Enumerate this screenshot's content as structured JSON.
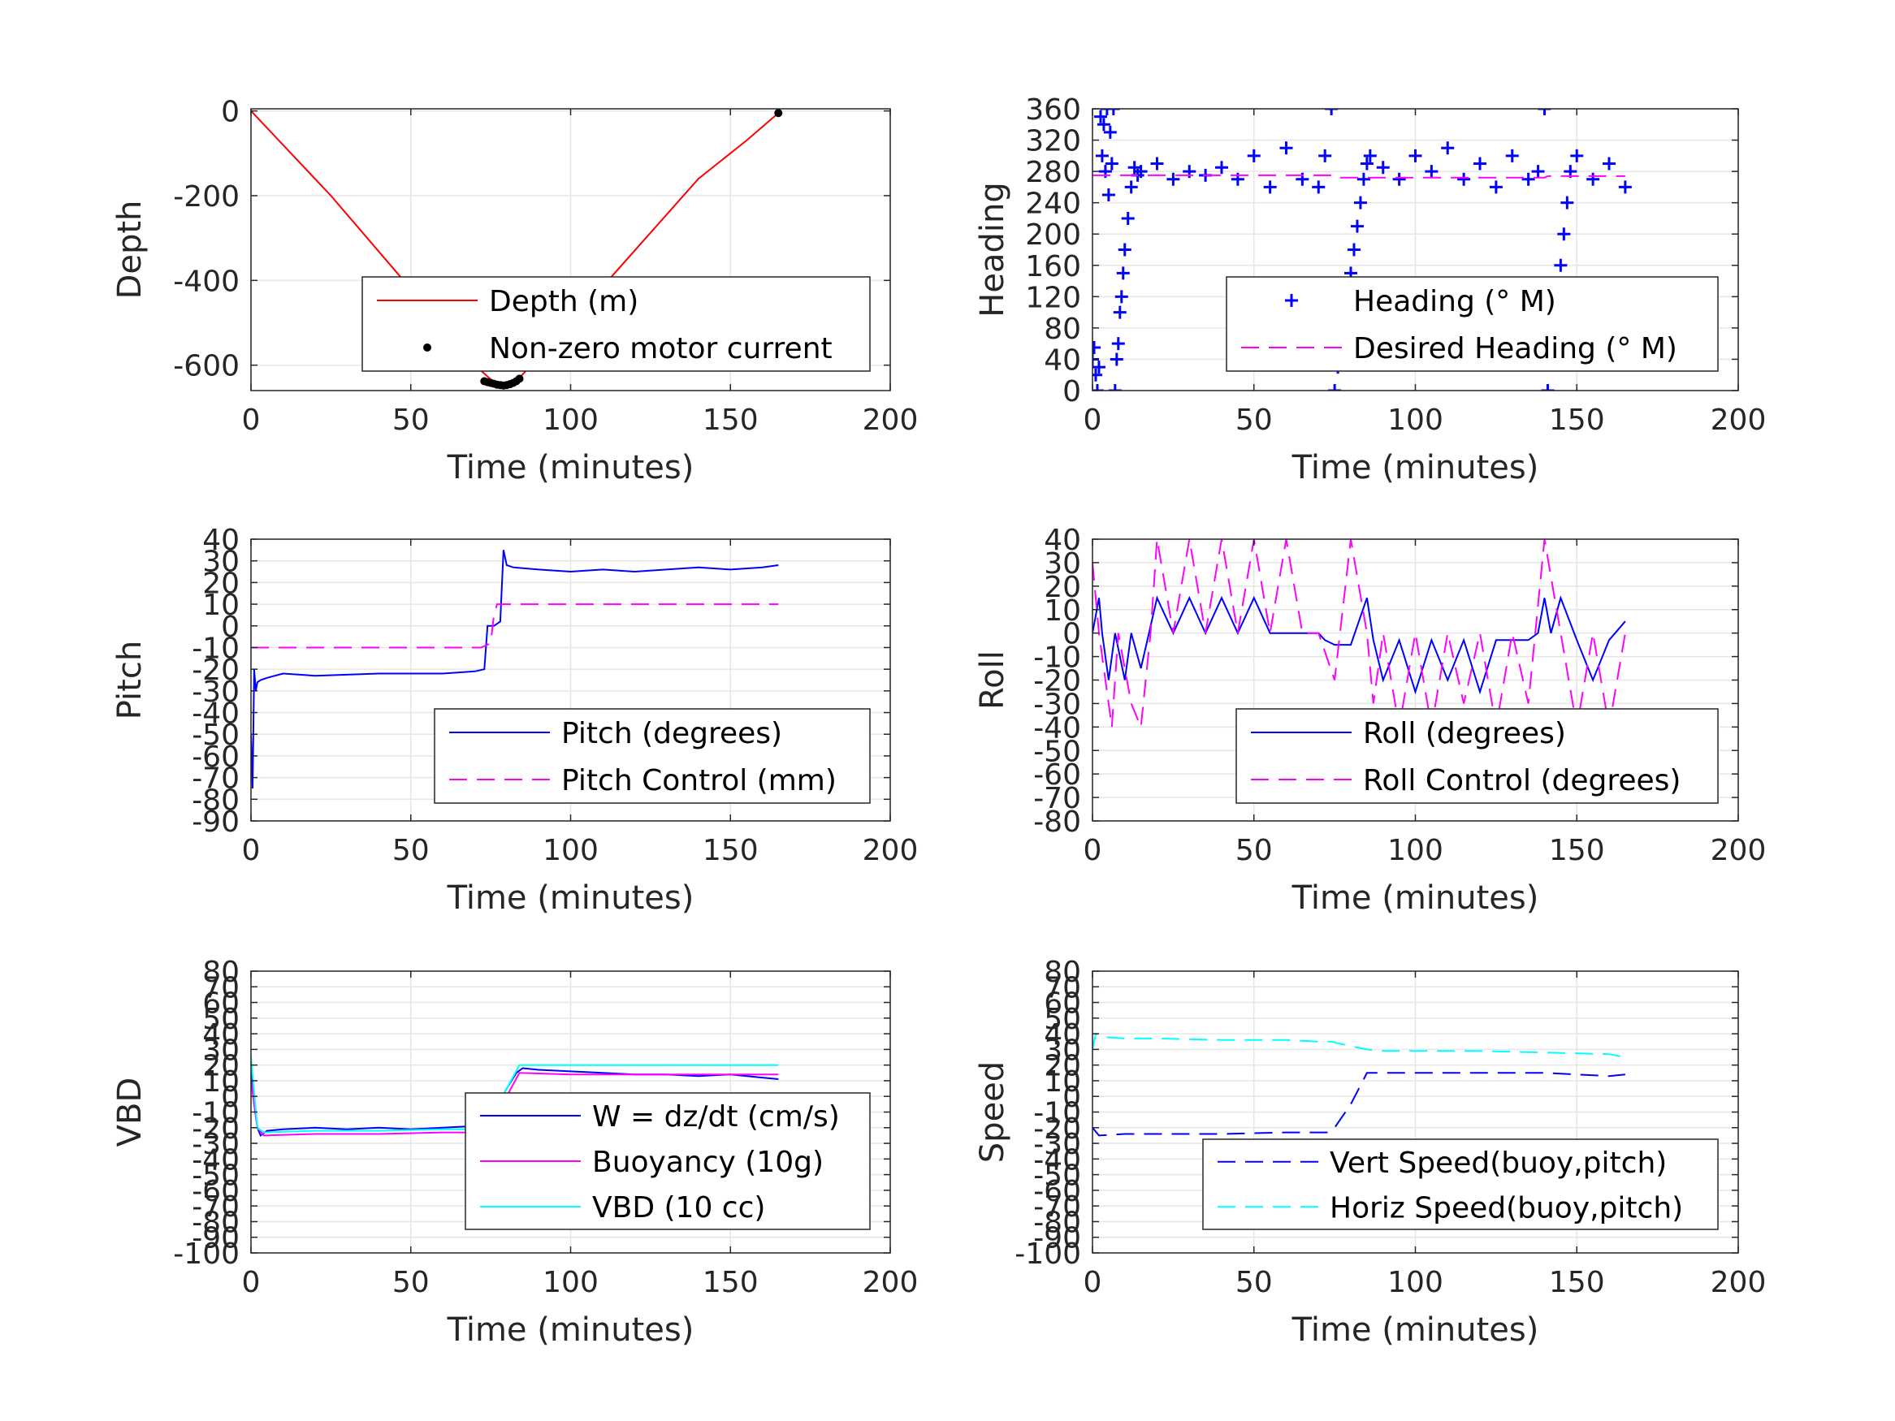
{
  "chart_data": [
    {
      "type": "line",
      "xlabel": "Time (minutes)",
      "ylabel": "Depth",
      "xlim": [
        0,
        200
      ],
      "ylim": [
        -660,
        5
      ],
      "xticks": [
        0,
        50,
        100,
        150,
        200
      ],
      "yticks": [
        0,
        -200,
        -400,
        -600
      ],
      "grid": true,
      "legend_position": "bottom-right",
      "series": [
        {
          "name": "Depth (m)",
          "style": "solid",
          "marker": "none",
          "color": "#ff0000",
          "x": [
            0,
            25,
            50,
            70,
            76,
            80,
            84,
            100,
            120,
            140,
            155,
            165
          ],
          "y": [
            0,
            -200,
            -420,
            -600,
            -640,
            -645,
            -630,
            -500,
            -330,
            -160,
            -70,
            -5
          ]
        },
        {
          "name": "Non-zero motor current",
          "style": "none",
          "marker": "dot",
          "color": "#000000",
          "x": [
            73,
            74,
            75,
            76,
            77,
            78,
            79,
            80,
            81,
            82,
            83,
            84,
            165
          ],
          "y": [
            -638,
            -640,
            -642,
            -644,
            -646,
            -647,
            -648,
            -647,
            -645,
            -642,
            -638,
            -632,
            -5
          ]
        }
      ]
    },
    {
      "type": "scatter",
      "xlabel": "Time (minutes)",
      "ylabel": "Heading",
      "xlim": [
        0,
        200
      ],
      "ylim": [
        0,
        360
      ],
      "xticks": [
        0,
        50,
        100,
        150,
        200
      ],
      "yticks": [
        0,
        40,
        80,
        120,
        160,
        200,
        240,
        280,
        320,
        360
      ],
      "grid": true,
      "legend_position": "bottom-right",
      "series": [
        {
          "name": "Heading (° M)",
          "style": "none",
          "marker": "plus",
          "color": "#0000ff",
          "x": [
            0,
            0.5,
            1,
            1.5,
            2,
            2.5,
            3,
            3.5,
            4,
            4.5,
            5,
            5.5,
            6,
            6.5,
            7,
            7.5,
            8,
            8.5,
            9,
            9.5,
            10,
            11,
            12,
            13,
            14,
            15,
            20,
            25,
            30,
            35,
            40,
            45,
            50,
            55,
            60,
            65,
            70,
            72,
            74,
            75,
            76,
            77,
            78,
            79,
            80,
            81,
            82,
            83,
            84,
            85,
            86,
            90,
            95,
            100,
            105,
            110,
            115,
            120,
            125,
            130,
            135,
            138,
            140,
            141,
            142,
            143,
            144,
            145,
            146,
            147,
            148,
            150,
            155,
            160,
            165
          ],
          "y": [
            40,
            55,
            20,
            0,
            30,
            350,
            300,
            340,
            280,
            360,
            250,
            330,
            290,
            360,
            0,
            40,
            60,
            100,
            120,
            150,
            180,
            220,
            260,
            285,
            275,
            280,
            290,
            270,
            280,
            275,
            285,
            270,
            300,
            260,
            310,
            270,
            260,
            300,
            360,
            0,
            30,
            70,
            100,
            130,
            150,
            180,
            210,
            240,
            270,
            290,
            300,
            285,
            270,
            300,
            280,
            310,
            270,
            290,
            260,
            300,
            270,
            280,
            360,
            0,
            40,
            80,
            120,
            160,
            200,
            240,
            280,
            300,
            270,
            290,
            260
          ]
        },
        {
          "name": "Desired Heading (° M)",
          "style": "dash",
          "marker": "none",
          "color": "#ff00ff",
          "x": [
            0,
            75,
            76,
            140,
            141,
            165
          ],
          "y": [
            275,
            275,
            272,
            272,
            274,
            274
          ]
        }
      ]
    },
    {
      "type": "line",
      "xlabel": "Time (minutes)",
      "ylabel": "Pitch",
      "xlim": [
        0,
        200
      ],
      "ylim": [
        -90,
        40
      ],
      "xticks": [
        0,
        50,
        100,
        150,
        200
      ],
      "yticks": [
        40,
        30,
        20,
        10,
        0,
        -10,
        -20,
        -30,
        -40,
        -50,
        -60,
        -70,
        -80,
        -90
      ],
      "grid": true,
      "legend_position": "bottom-right",
      "series": [
        {
          "name": "Pitch (degrees)",
          "style": "solid",
          "marker": "none",
          "color": "#0000ff",
          "x": [
            0,
            0.5,
            1,
            1.5,
            2,
            3,
            5,
            10,
            20,
            40,
            60,
            70,
            73,
            74,
            76,
            78,
            79,
            80,
            82,
            90,
            100,
            110,
            120,
            130,
            140,
            150,
            160,
            165
          ],
          "y": [
            -50,
            -75,
            -20,
            -30,
            -26,
            -25,
            -24,
            -22,
            -23,
            -22,
            -22,
            -21,
            -20,
            0,
            0,
            2,
            35,
            28,
            27,
            26,
            25,
            26,
            25,
            26,
            27,
            26,
            27,
            28
          ]
        },
        {
          "name": "Pitch Control (mm)",
          "style": "dash",
          "marker": "none",
          "color": "#ff00ff",
          "x": [
            0,
            72,
            75,
            76,
            77,
            165
          ],
          "y": [
            -10,
            -10,
            -8,
            5,
            10,
            10
          ]
        }
      ]
    },
    {
      "type": "line",
      "xlabel": "Time (minutes)",
      "ylabel": "Roll",
      "xlim": [
        0,
        200
      ],
      "ylim": [
        -80,
        40
      ],
      "xticks": [
        0,
        50,
        100,
        150,
        200
      ],
      "yticks": [
        40,
        30,
        20,
        10,
        0,
        -10,
        -20,
        -30,
        -40,
        -50,
        -60,
        -70,
        -80
      ],
      "grid": true,
      "legend_position": "bottom-right",
      "series": [
        {
          "name": "Roll (degrees)",
          "style": "solid",
          "marker": "none",
          "color": "#0000ff",
          "x": [
            0,
            2,
            3,
            5,
            7,
            10,
            12,
            15,
            20,
            25,
            30,
            35,
            40,
            45,
            50,
            55,
            60,
            65,
            70,
            72,
            75,
            80,
            85,
            87,
            90,
            95,
            100,
            105,
            110,
            115,
            120,
            125,
            130,
            135,
            138,
            140,
            142,
            145,
            150,
            155,
            160,
            165
          ],
          "y": [
            0,
            15,
            0,
            -20,
            0,
            -20,
            0,
            -15,
            15,
            0,
            15,
            0,
            15,
            0,
            15,
            0,
            0,
            0,
            0,
            -3,
            -5,
            -5,
            15,
            -3,
            -20,
            -3,
            -25,
            -3,
            -20,
            -3,
            -25,
            -3,
            -3,
            -3,
            0,
            15,
            0,
            15,
            -3,
            -20,
            -3,
            5
          ]
        },
        {
          "name": "Roll Control (degrees)",
          "style": "dash",
          "marker": "none",
          "color": "#ff00ff",
          "x": [
            0,
            2,
            4,
            6,
            8,
            12,
            15,
            18,
            20,
            25,
            30,
            35,
            40,
            45,
            50,
            55,
            60,
            65,
            70,
            75,
            80,
            85,
            87,
            90,
            95,
            100,
            105,
            110,
            115,
            120,
            125,
            130,
            135,
            140,
            145,
            150,
            155,
            160,
            165
          ],
          "y": [
            30,
            0,
            -20,
            -40,
            0,
            -30,
            -40,
            0,
            40,
            0,
            40,
            0,
            40,
            0,
            40,
            0,
            40,
            0,
            0,
            -20,
            40,
            0,
            -30,
            0,
            -40,
            0,
            -40,
            0,
            -30,
            0,
            -40,
            0,
            -30,
            40,
            0,
            -40,
            0,
            -40,
            0
          ]
        }
      ]
    },
    {
      "type": "line",
      "xlabel": "Time (minutes)",
      "ylabel": "VBD",
      "xlim": [
        0,
        200
      ],
      "ylim": [
        -100,
        80
      ],
      "xticks": [
        0,
        50,
        100,
        150,
        200
      ],
      "yticks": [
        80,
        70,
        60,
        50,
        40,
        30,
        20,
        10,
        0,
        -10,
        -20,
        -30,
        -40,
        -50,
        -60,
        -70,
        -80,
        -90,
        -100
      ],
      "ytick_labels": [
        "80",
        "70",
        "60",
        "50",
        "40",
        "30",
        "20",
        "10",
        "0",
        "-10",
        "-20",
        "-30",
        "-40",
        "-50",
        "-60",
        "-70",
        "-80",
        "-90",
        "-100"
      ],
      "grid": true,
      "legend_position": "bottom-right",
      "series": [
        {
          "name": "W = dz/dt (cm/s)",
          "style": "solid",
          "marker": "none",
          "color": "#0000ff",
          "x": [
            0,
            1,
            2,
            3,
            5,
            10,
            20,
            30,
            40,
            50,
            60,
            70,
            73,
            76,
            80,
            83,
            85,
            90,
            100,
            110,
            120,
            130,
            140,
            150,
            160,
            165
          ],
          "y": [
            20,
            -5,
            -20,
            -25,
            -22,
            -21,
            -20,
            -21,
            -20,
            -21,
            -20,
            -19,
            -18,
            -10,
            5,
            15,
            18,
            17,
            16,
            15,
            14,
            14,
            13,
            14,
            12,
            11
          ]
        },
        {
          "name": "Buoyancy (10g)",
          "style": "solid",
          "marker": "none",
          "color": "#ff00ff",
          "x": [
            0,
            2,
            4,
            20,
            40,
            60,
            72,
            74,
            80,
            84,
            100,
            120,
            140,
            165
          ],
          "y": [
            10,
            -20,
            -25,
            -24,
            -24,
            -23,
            -23,
            -20,
            0,
            15,
            14,
            14,
            14,
            14
          ]
        },
        {
          "name": "VBD (10 cc)",
          "style": "solid",
          "marker": "none",
          "color": "#00ffff",
          "x": [
            0,
            2,
            4,
            20,
            40,
            60,
            72,
            74,
            80,
            84,
            100,
            120,
            140,
            165
          ],
          "y": [
            25,
            -20,
            -23,
            -22,
            -22,
            -21,
            -21,
            -18,
            5,
            20,
            20,
            20,
            20,
            20
          ]
        }
      ]
    },
    {
      "type": "line",
      "xlabel": "Time (minutes)",
      "ylabel": "Speed",
      "xlim": [
        0,
        200
      ],
      "ylim": [
        -100,
        80
      ],
      "xticks": [
        0,
        50,
        100,
        150,
        200
      ],
      "yticks": [
        80,
        70,
        60,
        50,
        40,
        30,
        20,
        10,
        0,
        -10,
        -20,
        -30,
        -40,
        -50,
        -60,
        -70,
        -80,
        -90,
        -100
      ],
      "ytick_labels": [
        "80",
        "70",
        "60",
        "50",
        "40",
        "30",
        "20",
        "10",
        "0",
        "-10",
        "-20",
        "-30",
        "-40",
        "-50",
        "-60",
        "-70",
        "-80",
        "-90",
        "-100"
      ],
      "grid": true,
      "legend_position": "bottom-right",
      "series": [
        {
          "name": "Vert Speed(buoy,pitch)",
          "style": "dash",
          "marker": "none",
          "color": "#0000ff",
          "x": [
            0,
            2,
            10,
            20,
            40,
            60,
            73,
            75,
            80,
            85,
            90,
            100,
            120,
            140,
            160,
            165
          ],
          "y": [
            -20,
            -25,
            -24,
            -24,
            -24,
            -23,
            -23,
            -20,
            -5,
            15,
            15,
            15,
            15,
            15,
            13,
            14
          ]
        },
        {
          "name": "Horiz Speed(buoy,pitch)",
          "style": "dash",
          "marker": "none",
          "color": "#00ffff",
          "x": [
            0,
            1,
            3,
            10,
            20,
            40,
            60,
            70,
            74,
            80,
            85,
            90,
            100,
            120,
            140,
            160,
            165
          ],
          "y": [
            30,
            40,
            38,
            37,
            37,
            36,
            36,
            35,
            35,
            32,
            30,
            29,
            29,
            29,
            28,
            27,
            25
          ]
        }
      ]
    }
  ]
}
